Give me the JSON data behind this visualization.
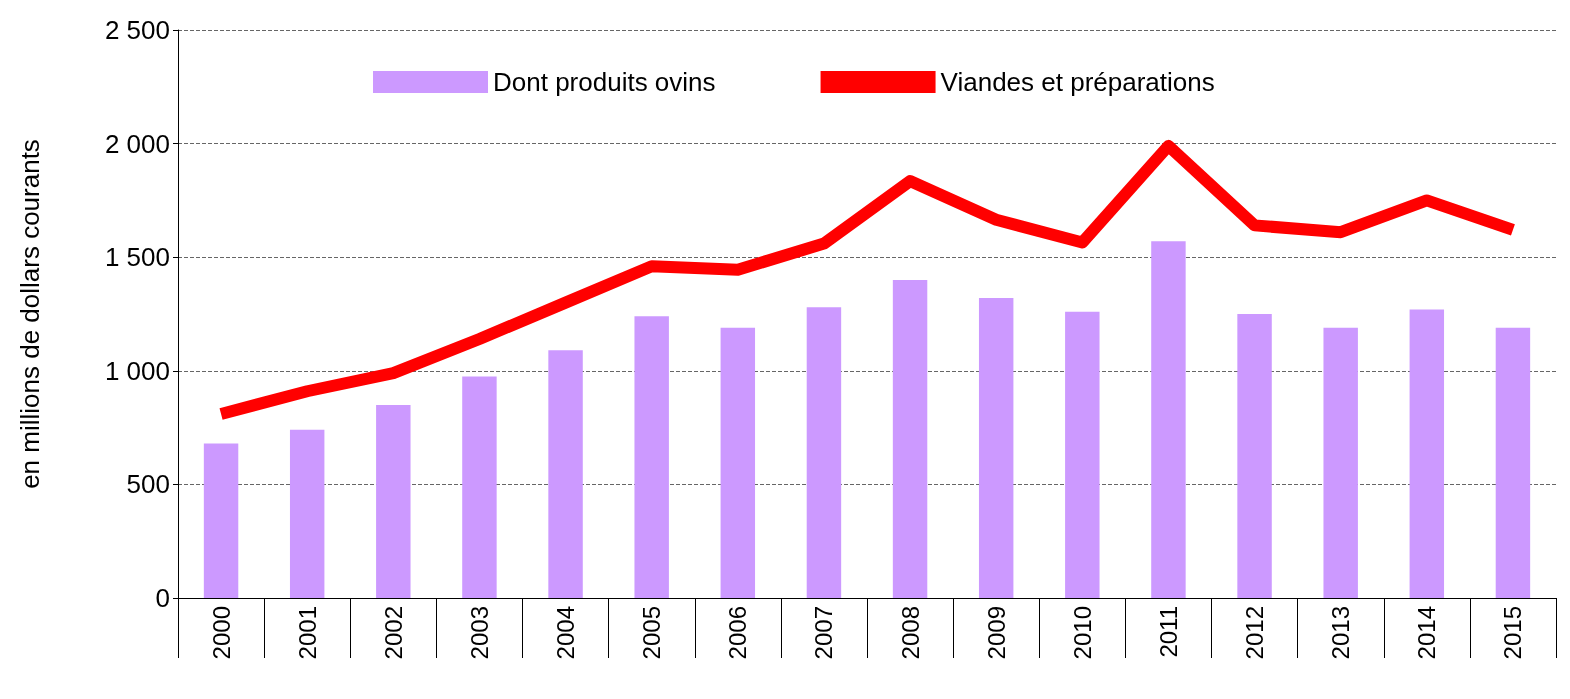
{
  "chart_data": {
    "type": "bar",
    "ylabel": "en millions de dollars courants",
    "categories": [
      "2000",
      "2001",
      "2002",
      "2003",
      "2004",
      "2005",
      "2006",
      "2007",
      "2008",
      "2009",
      "2010",
      "2011",
      "2012",
      "2013",
      "2014",
      "2015"
    ],
    "series": [
      {
        "name": "Dont produits ovins",
        "color": "#cc99ff",
        "values": [
          680,
          740,
          850,
          975,
          1090,
          1240,
          1190,
          1280,
          1400,
          1320,
          1260,
          1570,
          1250,
          1190,
          1270,
          1190
        ]
      },
      {
        "name": "Viandes et préparations",
        "type": "line",
        "color": "#ff0000",
        "values": [
          810,
          910,
          990,
          1140,
          1300,
          1460,
          1445,
          1560,
          1835,
          1665,
          1565,
          1990,
          1640,
          1610,
          1750,
          1620
        ]
      }
    ],
    "ylim": [
      0,
      2500
    ],
    "yticks": [
      0,
      500,
      {
        "value": 1000,
        "label": "1 000"
      },
      {
        "value": 1500,
        "label": "1 500"
      },
      {
        "value": 2000,
        "label": "2 000"
      },
      {
        "value": 2500,
        "label": "2 500"
      }
    ],
    "grid": "y",
    "legend": "top",
    "marker": "none",
    "line_style": "solid"
  }
}
